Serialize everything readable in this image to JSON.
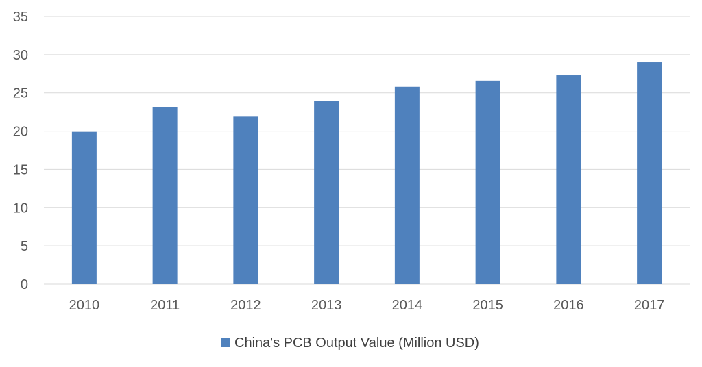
{
  "chart_data": {
    "type": "bar",
    "categories": [
      "2010",
      "2011",
      "2012",
      "2013",
      "2014",
      "2015",
      "2016",
      "2017"
    ],
    "series": [
      {
        "name": "China's PCB Output Value (Million USD)",
        "values": [
          19.9,
          23.1,
          21.9,
          23.9,
          25.8,
          26.6,
          27.3,
          29.0
        ],
        "color": "#4F81BD"
      }
    ],
    "ylim": [
      0,
      35
    ],
    "yticks": [
      "0",
      "5",
      "10",
      "15",
      "20",
      "25",
      "30",
      "35"
    ],
    "grid": true,
    "legend_position": "bottom",
    "colors": {
      "gridline": "#D9D9D9",
      "axis": "#D9D9D9",
      "tick_text": "#595959",
      "legend_text": "#404040"
    }
  }
}
